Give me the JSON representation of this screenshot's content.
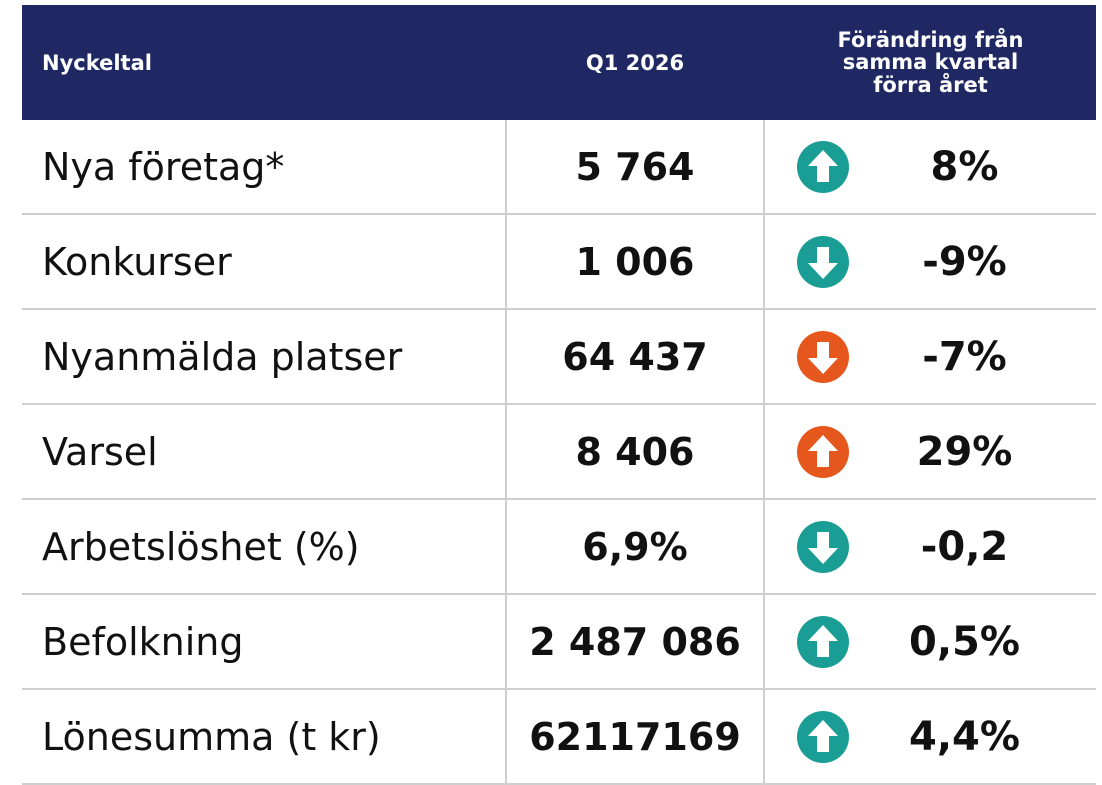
{
  "table": {
    "header": [
      "Nyckeltal",
      "Q1 2026",
      "Förändring från samma kvartal förra året"
    ],
    "rows": [
      [
        "Nya företag*",
        "5 764",
        "8%"
      ],
      [
        "Konkurser",
        "1 006",
        "-9%"
      ],
      [
        "Nyanmälda platser",
        "64 437",
        "-7%"
      ],
      [
        "Varsel",
        "8 406",
        "29%"
      ],
      [
        "Arbetslöshet (%)",
        "6,9%",
        "-0,2"
      ],
      [
        "Befolkning",
        "2 487 086",
        "0,5%"
      ],
      [
        "Lönesumma (t kr)",
        "62117169",
        "4,4%"
      ]
    ]
  }
}
